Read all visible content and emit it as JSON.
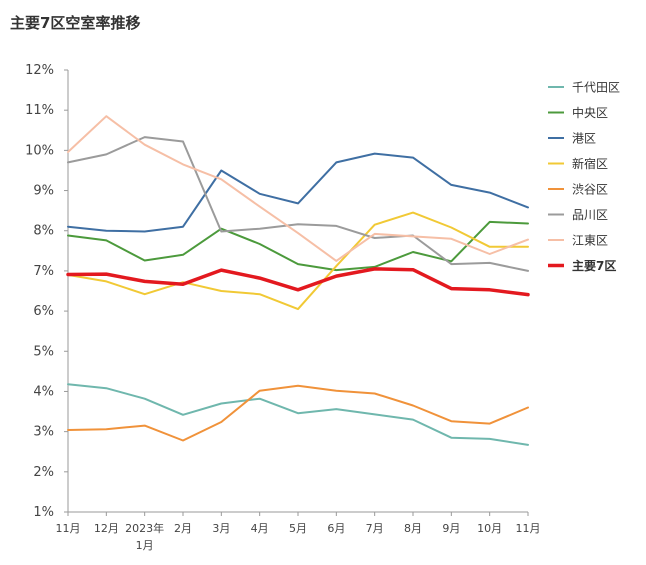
{
  "chart_data": {
    "type": "line",
    "title": "主要7区空室率推移",
    "xlabel": "",
    "ylabel": "",
    "ylim": [
      1,
      12
    ],
    "yticks": [
      "1%",
      "2%",
      "3%",
      "4%",
      "5%",
      "6%",
      "7%",
      "8%",
      "9%",
      "10%",
      "11%",
      "12%"
    ],
    "categories": [
      "11月",
      "12月",
      "2023年\n1月",
      "2月",
      "3月",
      "4月",
      "5月",
      "6月",
      "7月",
      "8月",
      "9月",
      "10月",
      "11月"
    ],
    "legend_position": "right",
    "grid": false,
    "series": [
      {
        "name": "千代田区",
        "color": "#6fb7ad",
        "width": 2,
        "values": [
          4.18,
          4.08,
          3.82,
          3.42,
          3.7,
          3.82,
          3.46,
          3.56,
          3.43,
          3.3,
          2.85,
          2.82,
          2.67
        ]
      },
      {
        "name": "中央区",
        "color": "#4c9a3c",
        "width": 2,
        "values": [
          7.88,
          7.76,
          7.26,
          7.4,
          8.05,
          7.67,
          7.17,
          7.02,
          7.1,
          7.47,
          7.24,
          8.22,
          8.18
        ]
      },
      {
        "name": "港区",
        "color": "#3f6fa3",
        "width": 2,
        "values": [
          8.1,
          8.0,
          7.98,
          8.1,
          9.5,
          8.92,
          8.68,
          9.7,
          9.92,
          9.82,
          9.14,
          8.95,
          8.58
        ]
      },
      {
        "name": "新宿区",
        "color": "#f1c935",
        "width": 2,
        "values": [
          6.9,
          6.74,
          6.42,
          6.72,
          6.5,
          6.42,
          6.05,
          7.12,
          8.15,
          8.45,
          8.08,
          7.6,
          7.6
        ]
      },
      {
        "name": "渋谷区",
        "color": "#f0923a",
        "width": 2,
        "values": [
          3.04,
          3.06,
          3.15,
          2.78,
          3.24,
          4.02,
          4.14,
          4.02,
          3.95,
          3.65,
          3.26,
          3.2,
          3.6
        ]
      },
      {
        "name": "品川区",
        "color": "#9b9b9b",
        "width": 2,
        "values": [
          9.7,
          9.9,
          10.33,
          10.22,
          7.98,
          8.05,
          8.16,
          8.12,
          7.82,
          7.88,
          7.17,
          7.2,
          7.0
        ]
      },
      {
        "name": "江東区",
        "color": "#f6bfa6",
        "width": 2,
        "values": [
          9.96,
          10.85,
          10.14,
          9.65,
          9.28,
          8.6,
          7.94,
          7.25,
          7.92,
          7.86,
          7.8,
          7.42,
          7.78
        ]
      },
      {
        "name": "主要7区",
        "color": "#e3191f",
        "width": 3.5,
        "values": [
          6.91,
          6.92,
          6.74,
          6.67,
          7.02,
          6.82,
          6.53,
          6.87,
          7.05,
          7.03,
          6.56,
          6.53,
          6.41
        ]
      }
    ]
  }
}
